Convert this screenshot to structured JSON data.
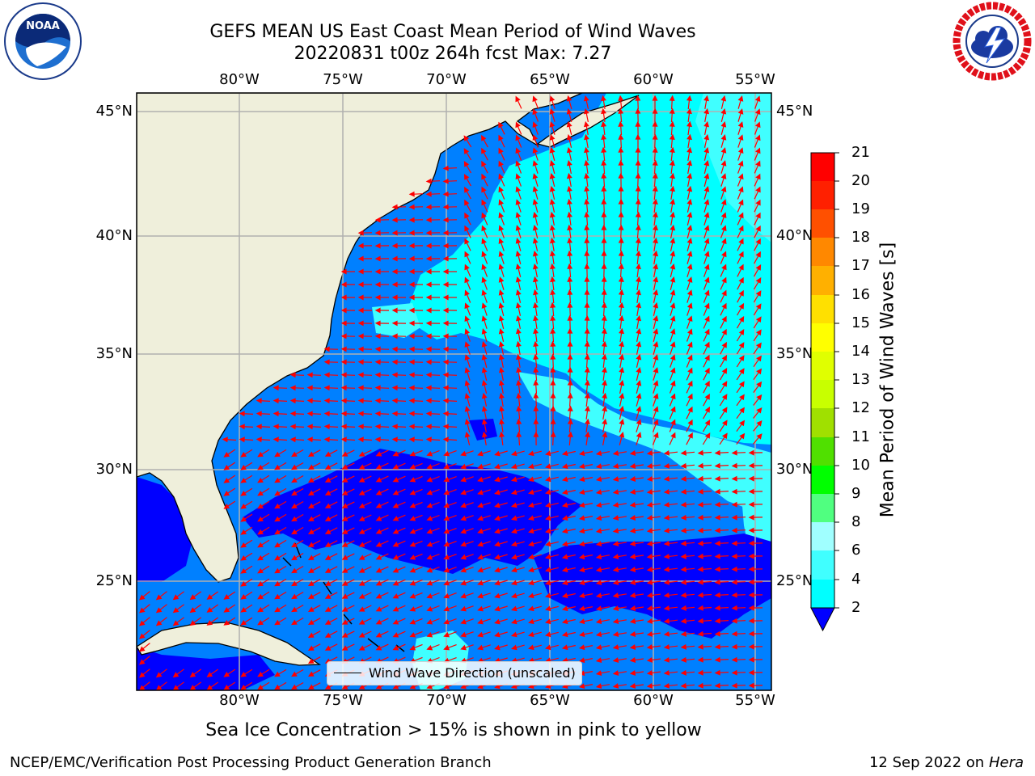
{
  "title_line1": "GEFS MEAN US East Coast Mean Period of Wind Waves",
  "title_line2": "20220831 t00z 264h fcst   Max: 7.27",
  "map": {
    "lon_labels": [
      "80°W",
      "75°W",
      "70°W",
      "65°W",
      "60°W",
      "55°W"
    ],
    "lat_labels": [
      "45°N",
      "40°N",
      "35°N",
      "30°N",
      "25°N"
    ],
    "land_color": "#efefdb",
    "ocean_colors": [
      "#0000ff",
      "#0080ff",
      "#00ffff",
      "#40ffff",
      "#a0ffff"
    ],
    "arrow_color": "#ff0000",
    "grid": true
  },
  "legend": {
    "label": "Wind Wave Direction (unscaled)"
  },
  "colorbar": {
    "label": "Mean Period of Wind Waves [s]",
    "ticks": [
      "21",
      "20",
      "19",
      "18",
      "17",
      "16",
      "15",
      "14",
      "13",
      "12",
      "11",
      "10",
      "9",
      "8",
      "6",
      "4",
      "2"
    ],
    "colors": [
      "#0000ff",
      "#0080ff",
      "#00ffff",
      "#40ffff",
      "#a0ffff",
      "#50ff80",
      "#00ff00",
      "#50e000",
      "#a0e000",
      "#c8ff00",
      "#e0ff00",
      "#ffff00",
      "#ffe000",
      "#ffb000",
      "#ff8800",
      "#ff5000",
      "#ff2000",
      "#ff0000"
    ]
  },
  "subcaption": "Sea Ice Concentration > 15% is shown in pink to yellow",
  "footer_left": "NCEP/EMC/Verification Post Processing Product Generation Branch",
  "footer_right_date": "12 Sep 2022 on",
  "footer_right_host": "Hera",
  "logos": {
    "left": "noaa-logo",
    "right": "nws-logo"
  }
}
